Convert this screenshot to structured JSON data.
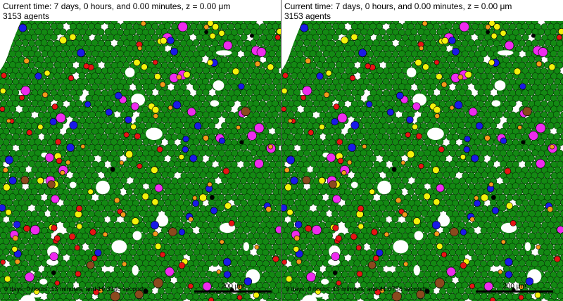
{
  "panels": [
    {
      "time_text": "Current time: 7 days, 0 hours, and 0.00 minutes, z = 0.00 μm",
      "agents_text": "3153 agents",
      "elapsed_text": "0 days, 0 hours, 13 minutes, and 19.3140 seconds",
      "scale_label": "200 μm",
      "seed": 7
    },
    {
      "time_text": "Current time: 7 days, 0 hours, and 0.00 minutes, z = 0.00 μm",
      "agents_text": "3153 agents",
      "elapsed_text": "0 days, 0 hours, 13 minutes, and 41.0754 seconds",
      "scale_label": "200 μm",
      "seed": 7
    }
  ],
  "colors": {
    "cell": "#138a13",
    "cell_stroke": "#003000",
    "magenta": "#ee2bee",
    "blue": "#1a1ae6",
    "yellow": "#f2f20a",
    "red": "#e61414",
    "orange": "#f29a1a",
    "brown": "#8a4a1e",
    "black": "#000000"
  }
}
